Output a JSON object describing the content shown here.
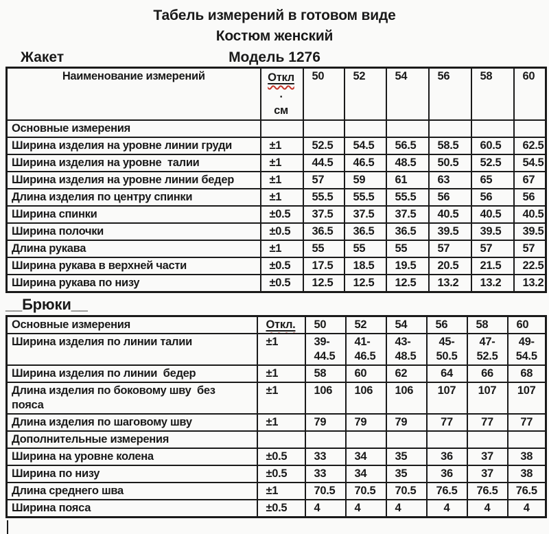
{
  "header": {
    "title_line1": "Табель измерений в готовом виде",
    "title_line2": "Костюм женский",
    "jacket_label": "Жакет",
    "model_label": "Модель 1276"
  },
  "jacket_table": {
    "name_header": "Наименование измерений",
    "deviation_header_lines": [
      "Откл",
      ".",
      "см"
    ],
    "size_headers": [
      "50",
      "52",
      "54",
      "56",
      "58",
      "60"
    ],
    "rows": [
      {
        "name": "Основные измерения",
        "dev": "",
        "values": [
          "",
          "",
          "",
          "",
          "",
          ""
        ]
      },
      {
        "name": "Ширина изделия на уровне линии груди",
        "dev": "±1",
        "values": [
          "52.5",
          "54.5",
          "56.5",
          "58.5",
          "60.5",
          "62.5"
        ]
      },
      {
        "name": "Ширина изделия на уровне  талии",
        "dev": "±1",
        "values": [
          "44.5",
          "46.5",
          "48.5",
          "50.5",
          "52.5",
          "54.5"
        ]
      },
      {
        "name": "Ширина изделия на уровне линии бедер",
        "dev": "±1",
        "values": [
          "57",
          "59",
          "61",
          "63",
          "65",
          "67"
        ]
      },
      {
        "name": "Длина изделия по центру спинки",
        "dev": "±1",
        "values": [
          "55.5",
          "55.5",
          "55.5",
          "56",
          "56",
          "56"
        ]
      },
      {
        "name": "Ширина спинки",
        "dev": "±0.5",
        "values": [
          "37.5",
          "37.5",
          "37.5",
          "40.5",
          "40.5",
          "40.5"
        ]
      },
      {
        "name": "Ширина полочки",
        "dev": "±0.5",
        "values": [
          "36.5",
          "36.5",
          "36.5",
          "39.5",
          "39.5",
          "39.5"
        ]
      },
      {
        "name": "Длина рукава",
        "dev": "±1",
        "values": [
          "55",
          "55",
          "55",
          "57",
          "57",
          "57"
        ]
      },
      {
        "name": "Ширина рукава в верхней части",
        "dev": "±0.5",
        "values": [
          "17.5",
          "18.5",
          "19.5",
          "20.5",
          "21.5",
          "22.5"
        ]
      },
      {
        "name": "Ширина рукава по низу",
        "dev": "±0.5",
        "values": [
          "12.5",
          "12.5",
          "12.5",
          "13.2",
          "13.2",
          "13.2"
        ]
      }
    ]
  },
  "trousers_section_label": "__Брюки__",
  "trousers_table": {
    "name_header": "Основные измерения",
    "deviation_header": "Откл.",
    "size_headers": [
      "50",
      "52",
      "54",
      "56",
      "58",
      "60"
    ],
    "rows": [
      {
        "name": "Ширина изделия по линии талии",
        "dev": "±1",
        "values": [
          "39-\n44.5",
          "41-\n46.5",
          "43-\n48.5",
          "45-\n50.5",
          "47-\n52.5",
          "49-\n54.5"
        ]
      },
      {
        "name": "Ширина изделия по линии  бедер",
        "dev": "±1",
        "values": [
          "58",
          "60",
          "62",
          "64",
          "66",
          "68"
        ]
      },
      {
        "name": "Длина изделия по боковому шву  без\nпояса",
        "dev": "±1",
        "values": [
          "106",
          "106",
          "106",
          "107",
          "107",
          "107"
        ]
      },
      {
        "name": "Длина изделия по шаговому шву",
        "dev": "±1",
        "values": [
          "79",
          "79",
          "79",
          "77",
          "77",
          "77"
        ]
      },
      {
        "name": "Дополнительные измерения",
        "dev": "",
        "values": [
          "",
          "",
          "",
          "",
          "",
          ""
        ]
      },
      {
        "name": "Ширина на уровне колена",
        "dev": "±0.5",
        "values": [
          "33",
          "34",
          "35",
          "36",
          "37",
          "38"
        ]
      },
      {
        "name": "Ширина по низу",
        "dev": "±0.5",
        "values": [
          "33",
          "34",
          "35",
          "36",
          "37",
          "38"
        ]
      },
      {
        "name": "Длина среднего шва",
        "dev": "±1",
        "values": [
          "70.5",
          "70.5",
          "70.5",
          "76.5",
          "76.5",
          "76.5"
        ]
      },
      {
        "name": "Ширина пояса",
        "dev": "±0.5",
        "values": [
          "4",
          "4",
          "4",
          "4",
          "4",
          "4"
        ]
      }
    ]
  },
  "cursor_char": "|",
  "colors": {
    "text": "#1a1a1a",
    "border": "#1a1a1a",
    "background": "#fafaf9",
    "spellcheck_squiggle": "#c43328"
  }
}
